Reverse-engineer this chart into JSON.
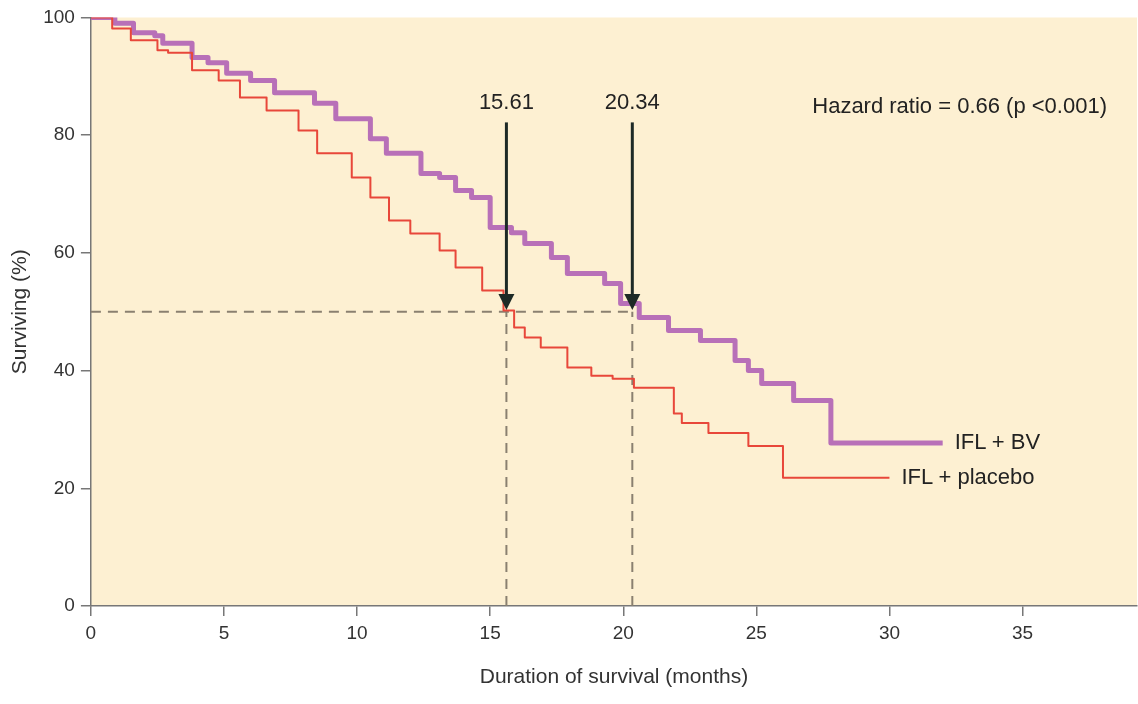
{
  "chart_data": {
    "type": "step",
    "xlabel": "Duration of survival (months)",
    "ylabel": "Surviving (%)",
    "xlim": [
      0,
      39.3
    ],
    "xticks": [
      0,
      5,
      10,
      15,
      20,
      25,
      30,
      35
    ],
    "ylim": [
      0,
      100
    ],
    "yticks": [
      0,
      20,
      40,
      60,
      80,
      100
    ],
    "grid": false,
    "legend": false,
    "marker": "none",
    "series": [
      {
        "name": "IFL + BV",
        "color": "#b870b8",
        "x": [
          0,
          0.5,
          0.9,
          1.6,
          2.4,
          2.7,
          3.8,
          4.4,
          5.1,
          6,
          6.9,
          8.4,
          9.2,
          10.5,
          11.1,
          12.4,
          13.1,
          13.7,
          14.3,
          15,
          15.8,
          16.3,
          17.3,
          17.9,
          19.3,
          19.9,
          20.6,
          21.7,
          22.9,
          24.2,
          24.7,
          25.2,
          26.4,
          27.8,
          32
        ],
        "values": [
          100,
          100,
          99,
          97.4,
          96.9,
          95.6,
          93.2,
          92.3,
          90.5,
          89.3,
          87.2,
          85.4,
          82.8,
          79.4,
          76.9,
          73.5,
          72.8,
          70.6,
          69.4,
          64.3,
          63.4,
          61.6,
          59.2,
          56.5,
          54.8,
          51.4,
          49,
          46.8,
          45.1,
          41.7,
          40,
          37.8,
          34.9,
          27.7,
          27.7
        ]
      },
      {
        "name": "IFL + placebo",
        "color": "#e8473a",
        "x": [
          0,
          0.4,
          0.8,
          1.5,
          2.5,
          2.9,
          3.8,
          4.8,
          5.6,
          6.6,
          7.8,
          8.5,
          9.8,
          10.5,
          11.2,
          12,
          13.1,
          13.7,
          14.7,
          15.5,
          15.9,
          16.3,
          16.9,
          17.9,
          18.8,
          19.6,
          20.4,
          21.9,
          22.2,
          23.2,
          24.7,
          26,
          30
        ],
        "values": [
          100,
          100,
          98.1,
          96.1,
          94.4,
          94,
          91,
          89.3,
          86.4,
          84.2,
          80.8,
          76.9,
          72.8,
          69.4,
          65.5,
          63.3,
          60.4,
          57.5,
          53.6,
          50.2,
          47.3,
          45.6,
          43.9,
          40.5,
          39.1,
          38.6,
          37.1,
          32.7,
          31.1,
          29.4,
          27.2,
          21.8,
          21.8
        ]
      }
    ],
    "ref_lines": [
      {
        "axis": "y",
        "value": 50,
        "color": "#8a8070",
        "line_style": "dashed"
      },
      {
        "axis": "x",
        "value": 15.61,
        "color": "#8a8070",
        "line_style": "dashed"
      },
      {
        "axis": "x",
        "value": 20.34,
        "color": "#8a8070",
        "line_style": "dashed"
      }
    ],
    "annotations": [
      {
        "text": "15.61",
        "x": 15.61,
        "y": 52
      },
      {
        "text": "20.34",
        "x": 20.34,
        "y": 52
      },
      "Hazard ratio = 0.66 (p <0.001)"
    ]
  }
}
